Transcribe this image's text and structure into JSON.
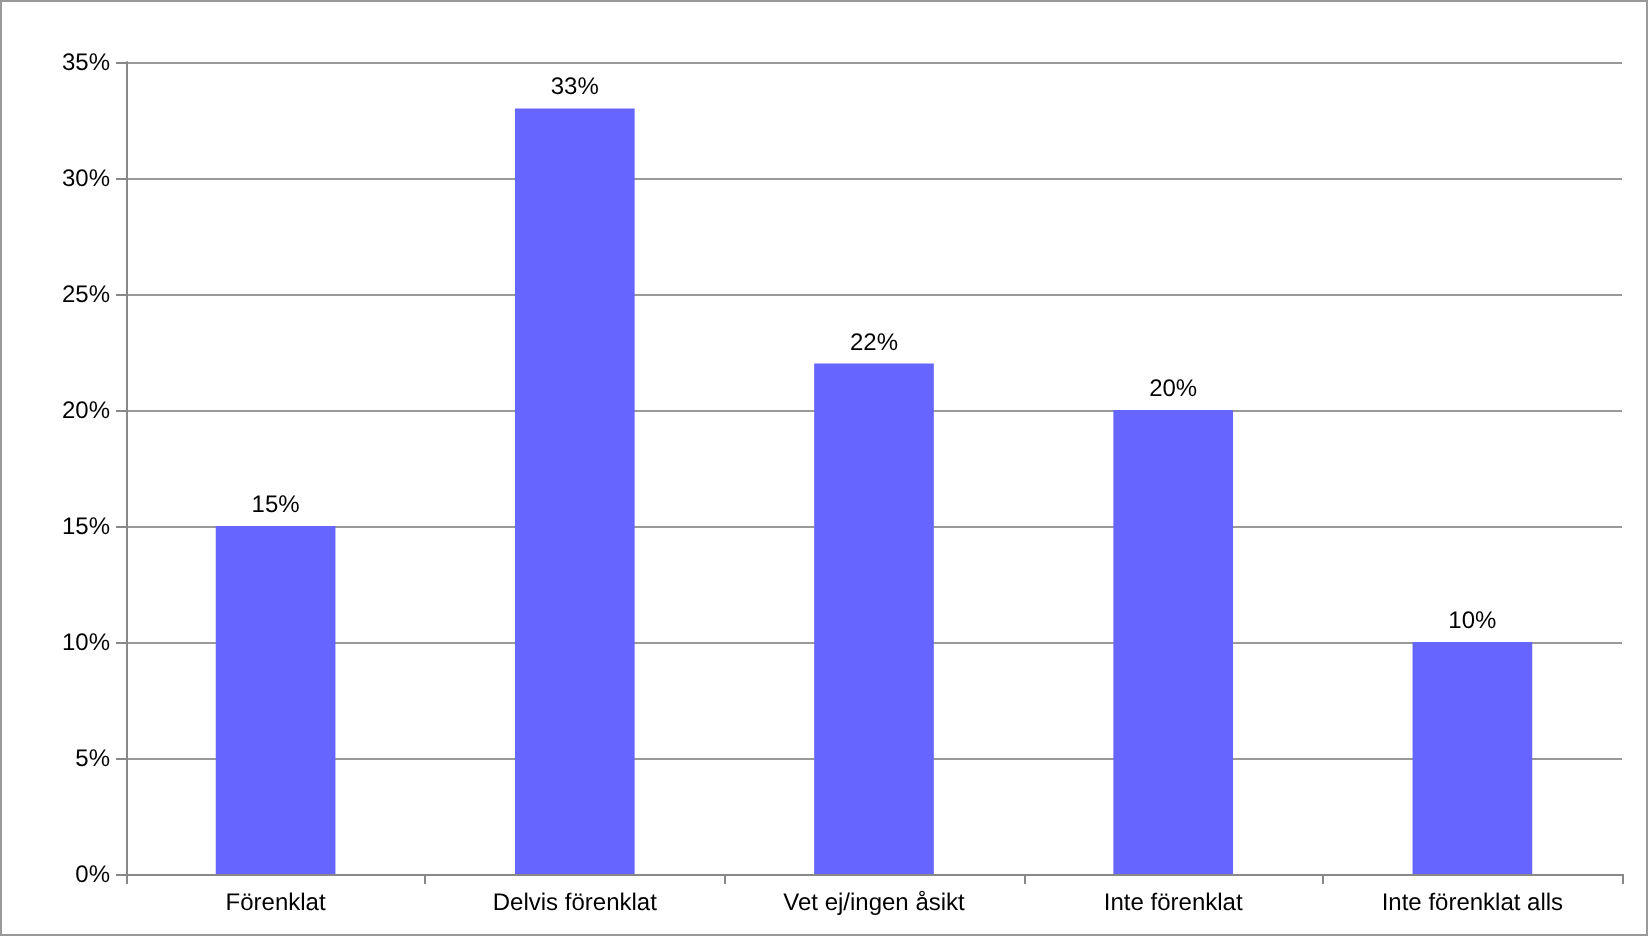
{
  "chart_data": {
    "type": "bar",
    "categories": [
      "Förenklat",
      "Delvis förenklat",
      "Vet ej/ingen åsikt",
      "Inte förenklat",
      "Inte förenklat alls"
    ],
    "values": [
      15,
      33,
      22,
      20,
      10
    ],
    "value_labels": [
      "15%",
      "33%",
      "22%",
      "20%",
      "10%"
    ],
    "color": "#6666ff",
    "ylim": [
      0,
      35
    ],
    "yticks": [
      {
        "value": 0,
        "label": "0%"
      },
      {
        "value": 5,
        "label": "5%"
      },
      {
        "value": 10,
        "label": "10%"
      },
      {
        "value": 15,
        "label": "15%"
      },
      {
        "value": 20,
        "label": "20%"
      },
      {
        "value": 25,
        "label": "25%"
      },
      {
        "value": 30,
        "label": "30%"
      },
      {
        "value": 35,
        "label": "35%"
      }
    ],
    "grid": "y"
  }
}
